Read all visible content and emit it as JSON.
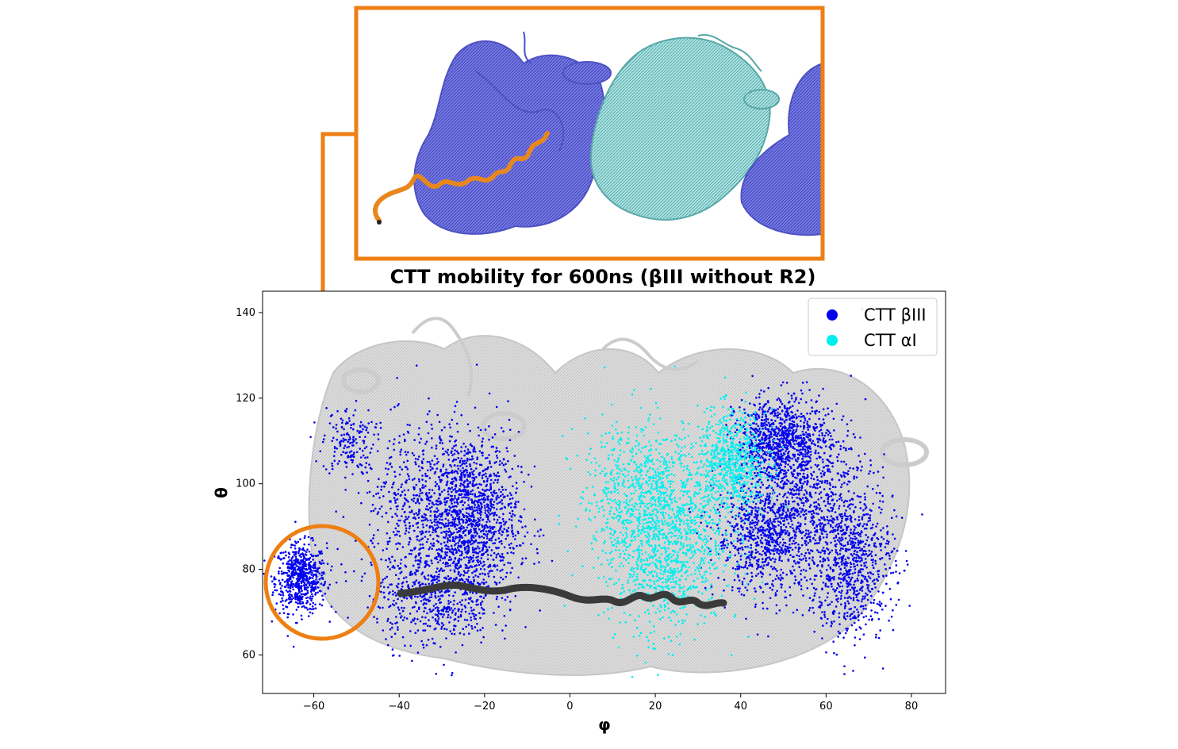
{
  "chart_data": {
    "type": "scatter",
    "title": "CTT mobility for 600ns (βIII without R2)",
    "xlabel": "φ",
    "ylabel": "θ",
    "xlim": [
      -72,
      88
    ],
    "ylim": [
      51,
      145
    ],
    "xticks": [
      -60,
      -40,
      -20,
      0,
      20,
      40,
      60,
      80
    ],
    "yticks": [
      60,
      80,
      100,
      120,
      140
    ],
    "xtick_labels": [
      "−60",
      "−40",
      "−20",
      "0",
      "20",
      "40",
      "60",
      "80"
    ],
    "ytick_labels": [
      "60",
      "80",
      "100",
      "120",
      "140"
    ],
    "grid": false,
    "legend_position": "top-right",
    "series": [
      {
        "name": "CTT βIII",
        "color": "#0000ee",
        "clusters": [
          {
            "cx": -63,
            "cy": 78,
            "sx": 3,
            "sy": 4,
            "n": 650
          },
          {
            "cx": -52,
            "cy": 110,
            "sx": 3,
            "sy": 4,
            "n": 160
          },
          {
            "cx": -24,
            "cy": 92,
            "sx": 6,
            "sy": 10,
            "n": 1500
          },
          {
            "cx": -32,
            "cy": 74,
            "sx": 7,
            "sy": 6,
            "n": 500
          },
          {
            "cx": -38,
            "cy": 95,
            "sx": 6,
            "sy": 9,
            "n": 350
          },
          {
            "cx": 49,
            "cy": 110,
            "sx": 5,
            "sy": 5,
            "n": 900
          },
          {
            "cx": 46,
            "cy": 88,
            "sx": 6,
            "sy": 7,
            "n": 900
          },
          {
            "cx": 66,
            "cy": 82,
            "sx": 5,
            "sy": 9,
            "n": 800
          },
          {
            "cx": 57,
            "cy": 98,
            "sx": 6,
            "sy": 10,
            "n": 500
          }
        ]
      },
      {
        "name": "CTT αI",
        "color": "#00eeee",
        "clusters": [
          {
            "cx": 22,
            "cy": 88,
            "sx": 7,
            "sy": 11,
            "n": 1400
          },
          {
            "cx": 38,
            "cy": 105,
            "sx": 4,
            "sy": 6,
            "n": 700
          },
          {
            "cx": 14,
            "cy": 100,
            "sx": 6,
            "sy": 8,
            "n": 300
          }
        ]
      }
    ]
  },
  "inset": {
    "border_color": "#ee7f14",
    "colors": {
      "beta_subunit": "#6b6fe0",
      "alpha_subunit": "#8fd6d6",
      "tail": "#e8871e",
      "background_structure": "#c8c8c8"
    }
  }
}
